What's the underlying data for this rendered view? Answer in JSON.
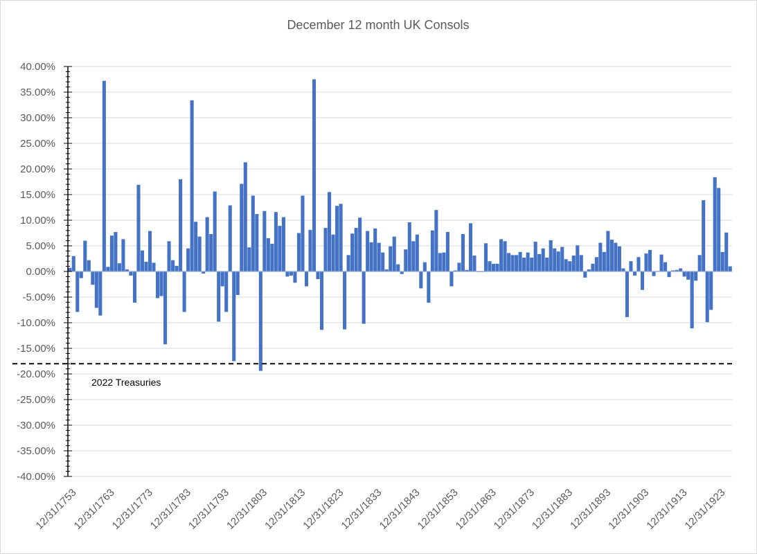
{
  "chart_data": {
    "type": "bar",
    "title": "December 12 month UK Consols",
    "xlabel": "",
    "ylabel": "",
    "ylim": [
      -0.4,
      0.4
    ],
    "y_ticks": [
      "40.00%",
      "35.00%",
      "30.00%",
      "25.00%",
      "20.00%",
      "15.00%",
      "10.00%",
      "5.00%",
      "0.00%",
      "-5.00%",
      "-10.00%",
      "-15.00%",
      "-20.00%",
      "-25.00%",
      "-30.00%",
      "-35.00%",
      "-40.00%"
    ],
    "y_tick_values": [
      0.4,
      0.35,
      0.3,
      0.25,
      0.2,
      0.15,
      0.1,
      0.05,
      0.0,
      -0.05,
      -0.1,
      -0.15,
      -0.2,
      -0.25,
      -0.3,
      -0.35,
      -0.4
    ],
    "x_tick_labels": [
      "12/31/1753",
      "12/31/1763",
      "12/31/1773",
      "12/31/1783",
      "12/31/1793",
      "12/31/1803",
      "12/31/1813",
      "12/31/1823",
      "12/31/1833",
      "12/31/1843",
      "12/31/1853",
      "12/31/1863",
      "12/31/1873",
      "12/31/1883",
      "12/31/1893",
      "12/31/1903",
      "12/31/1913",
      "12/31/1923"
    ],
    "grid": true,
    "legend": "none",
    "bar_color": "#4472c4",
    "start_year": 1753,
    "series": [
      {
        "values": [
          0.007,
          0.03,
          -0.079,
          -0.013,
          0.06,
          0.022,
          -0.026,
          -0.071,
          -0.086,
          0.372,
          0.009,
          0.07,
          0.077,
          0.016,
          0.063,
          0.004,
          -0.008,
          -0.061,
          0.169,
          0.041,
          0.019,
          0.079,
          0.017,
          -0.052,
          -0.048,
          -0.142,
          0.059,
          0.022,
          0.011,
          0.18,
          -0.079,
          0.045,
          0.334,
          0.097,
          0.068,
          -0.004,
          0.106,
          0.073,
          0.156,
          -0.098,
          -0.029,
          -0.079,
          0.129,
          -0.175,
          -0.046,
          0.171,
          0.213,
          0.047,
          0.148,
          0.112,
          -0.194,
          0.118,
          0.065,
          0.054,
          0.116,
          0.089,
          0.106,
          -0.01,
          -0.008,
          -0.022,
          0.075,
          0.148,
          -0.029,
          0.081,
          0.375,
          -0.015,
          -0.114,
          0.085,
          0.155,
          0.072,
          0.128,
          0.132,
          -0.113,
          0.032,
          0.074,
          0.085,
          0.105,
          -0.102,
          0.079,
          0.057,
          0.084,
          0.056,
          0.037,
          0.004,
          0.049,
          0.068,
          0.014,
          -0.005,
          0.043,
          0.096,
          0.059,
          0.072,
          -0.033,
          0.018,
          -0.061,
          0.08,
          0.12,
          0.036,
          0.037,
          0.077,
          -0.029,
          0.002,
          0.017,
          0.073,
          0.003,
          0.094,
          0.031,
          -0.001,
          -0.001,
          0.055,
          0.02,
          0.015,
          0.015,
          0.063,
          0.059,
          0.036,
          0.032,
          0.032,
          0.038,
          0.027,
          0.037,
          0.027,
          0.058,
          0.034,
          0.045,
          0.027,
          0.061,
          0.045,
          0.039,
          0.048,
          0.024,
          0.02,
          0.031,
          0.051,
          0.032,
          -0.012,
          0.004,
          0.015,
          0.028,
          0.056,
          0.038,
          0.079,
          0.062,
          0.056,
          0.049,
          0.006,
          -0.089,
          0.02,
          -0.008,
          0.028,
          -0.036,
          0.035,
          0.042,
          -0.009,
          0.001,
          0.033,
          0.018,
          -0.011,
          0.002,
          0.003,
          0.006,
          -0.01,
          -0.016,
          -0.111,
          -0.018,
          0.032,
          0.139,
          -0.099,
          -0.075,
          0.184,
          0.163,
          0.038,
          0.076,
          0.01
        ]
      }
    ],
    "annotations": [
      {
        "text": "2022 Treasuries",
        "value": -0.18,
        "style": "dashed-line"
      }
    ]
  }
}
